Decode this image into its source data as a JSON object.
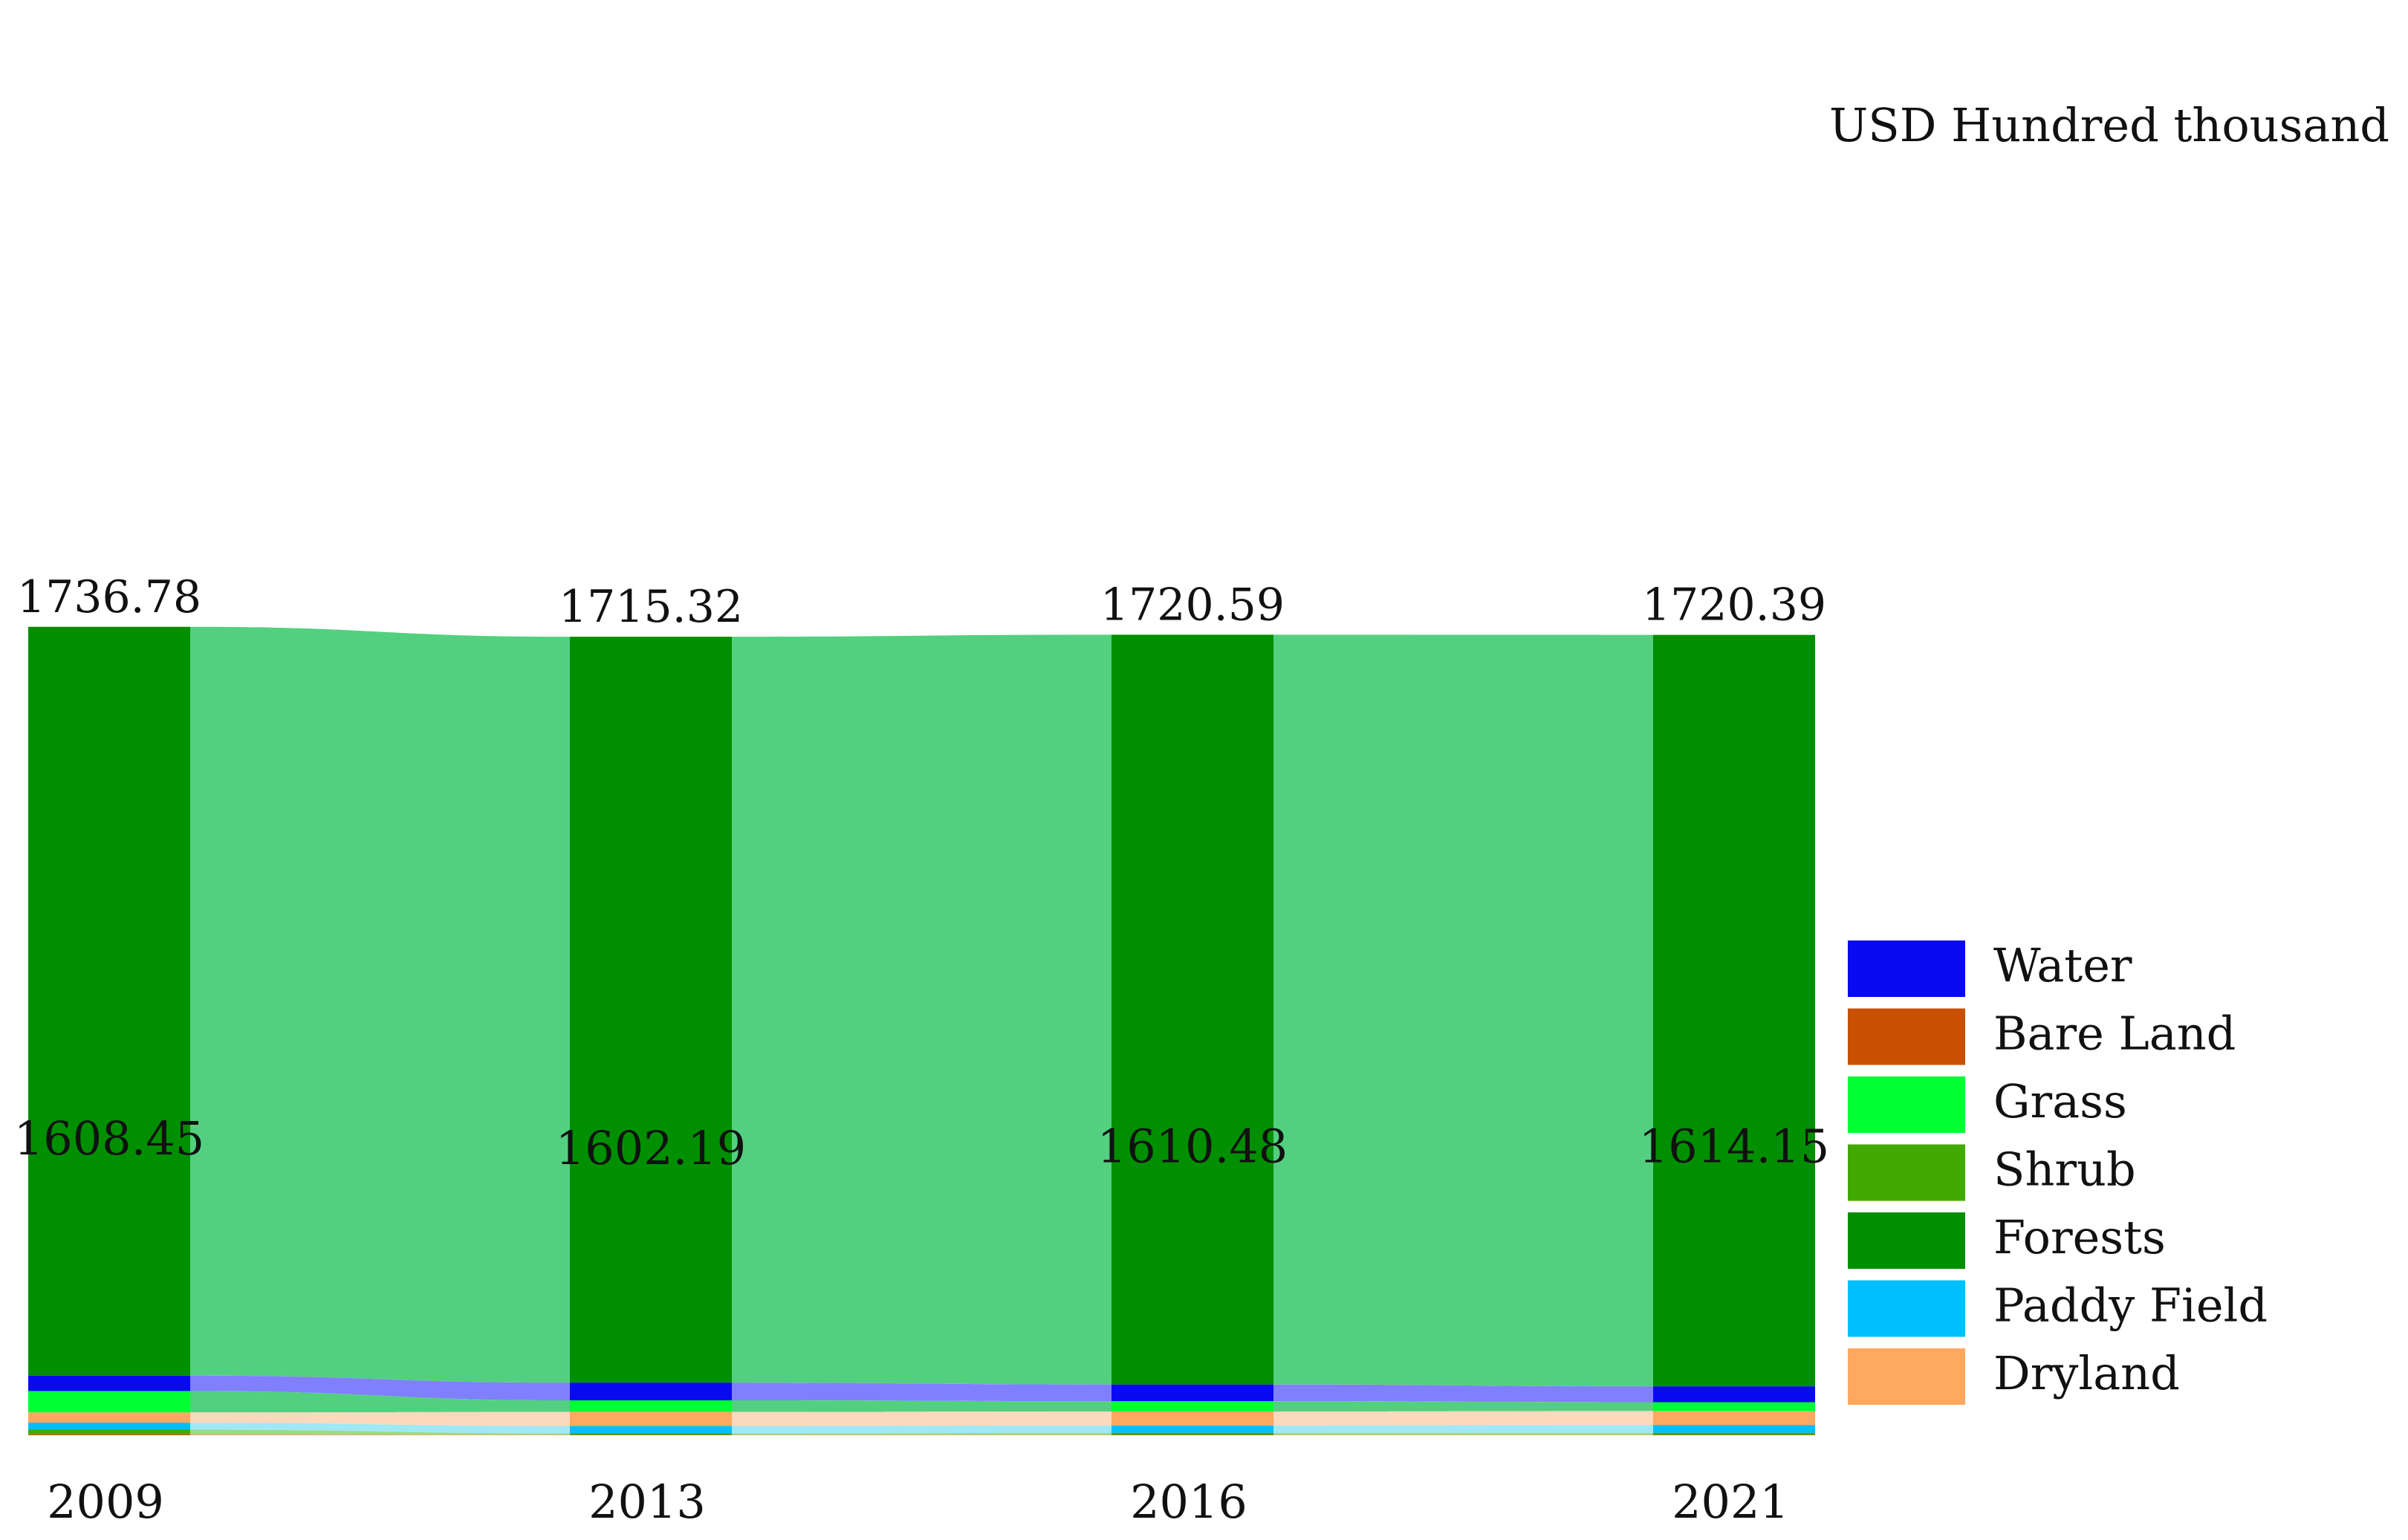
{
  "chart_data": {
    "type": "sankey",
    "title": "",
    "unit_label": "USD Hundred thousand",
    "years": [
      "2009",
      "2013",
      "2016",
      "2021"
    ],
    "totals": [
      "1736.78",
      "1715.32",
      "1720.59",
      "1720.39"
    ],
    "forest_labels": [
      "1608.45",
      "1602.19",
      "1610.48",
      "1614.15"
    ],
    "stack_order": [
      "Forests",
      "Water",
      "Grass",
      "Dryland",
      "Paddy Field",
      "Shrub",
      "Bare Land"
    ],
    "series": [
      {
        "name": "Forests",
        "color": "#008f00",
        "flow_color": "#52d07f",
        "values": [
          1608.45,
          1602.19,
          1610.48,
          1614.15
        ]
      },
      {
        "name": "Water",
        "color": "#0a0af0",
        "flow_color": "#8080ff",
        "values": [
          33.0,
          38.0,
          36.0,
          34.0
        ]
      },
      {
        "name": "Grass",
        "color": "#00ff33",
        "flow_color": "#52d07f",
        "values": [
          46.0,
          25.0,
          22.0,
          19.0
        ]
      },
      {
        "name": "Dryland",
        "color": "#ffa860",
        "flow_color": "#fcd8bc",
        "values": [
          22.0,
          30.0,
          30.0,
          30.0
        ]
      },
      {
        "name": "Paddy Field",
        "color": "#00bfff",
        "flow_color": "#a0e8f6",
        "values": [
          15.0,
          16.0,
          16.0,
          17.0
        ]
      },
      {
        "name": "Shrub",
        "color": "#40aa00",
        "flow_color": "#9ddb7e",
        "values": [
          10.0,
          3.0,
          4.0,
          4.0
        ]
      },
      {
        "name": "Bare Land",
        "color": "#c85000",
        "flow_color": "#e8a070",
        "values": [
          2.0,
          1.0,
          1.0,
          1.0
        ]
      }
    ],
    "legend": [
      {
        "name": "Water",
        "color": "#0a0af0"
      },
      {
        "name": "Bare Land",
        "color": "#c85000"
      },
      {
        "name": "Grass",
        "color": "#00ff33"
      },
      {
        "name": "Shrub",
        "color": "#40aa00"
      },
      {
        "name": "Forests",
        "color": "#008f00"
      },
      {
        "name": "Paddy Field",
        "color": "#00bfff"
      },
      {
        "name": "Dryland",
        "color": "#ffa860"
      }
    ],
    "legend_position": "bottom-right"
  }
}
